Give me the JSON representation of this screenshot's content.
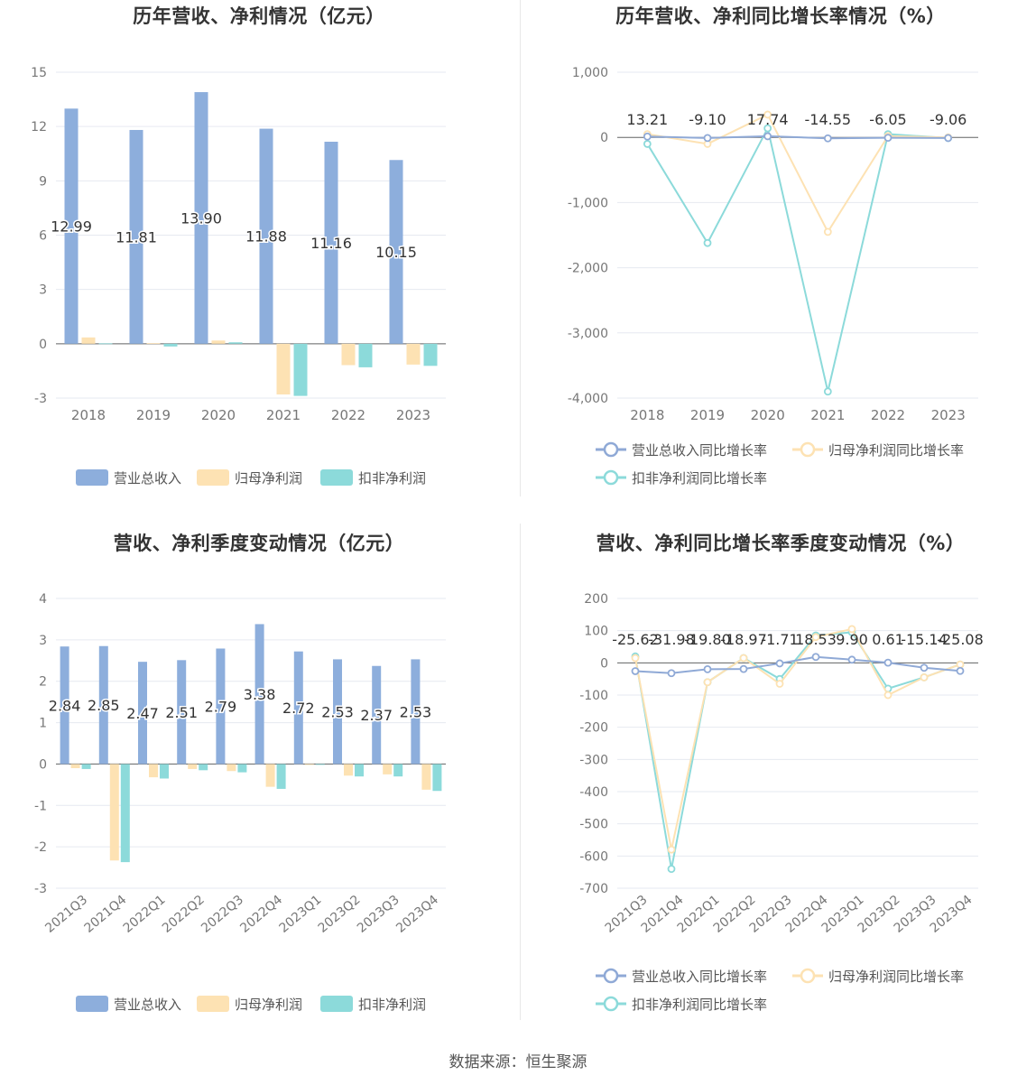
{
  "page": {
    "source_label": "数据来源：",
    "source_value": "恒生聚源"
  },
  "colors": {
    "revenue": "#8daedc",
    "parent_net": "#fde2b3",
    "deducted_net": "#8cdada",
    "revenue_line": "#8fa9d6",
    "grid": "#e6e9f0",
    "axis": "#666666"
  },
  "legend_labels": [
    "营业总收入",
    "归母净利润",
    "扣非净利润"
  ],
  "legend_growth_labels": [
    "营业总收入同比增长率",
    "归母净利润同比增长率",
    "扣非净利润同比增长率"
  ],
  "chart_data": [
    {
      "type": "bar",
      "title": "历年营收、净利情况（亿元）",
      "categories": [
        "2018",
        "2019",
        "2020",
        "2021",
        "2022",
        "2023"
      ],
      "series": [
        {
          "name": "营业总收入",
          "values": [
            12.99,
            11.81,
            13.9,
            11.88,
            11.16,
            10.15
          ]
        },
        {
          "name": "归母净利润",
          "values": [
            0.35,
            0.03,
            0.18,
            -2.8,
            -1.18,
            -1.15
          ]
        },
        {
          "name": "扣非净利润",
          "values": [
            0.02,
            -0.15,
            0.08,
            -2.88,
            -1.3,
            -1.22
          ]
        }
      ],
      "data_labels": [
        "12.99",
        "11.81",
        "13.90",
        "11.88",
        "11.16",
        "10.15"
      ],
      "ylim": [
        -3,
        15
      ],
      "yticks": [
        -3,
        0,
        3,
        6,
        9,
        12,
        15
      ],
      "ytick_labels": [
        "-3",
        "0",
        "3",
        "6",
        "9",
        "12",
        "15"
      ],
      "grid": true,
      "legend_position": "bottom"
    },
    {
      "type": "line",
      "title": "历年营收、净利同比增长率情况（%）",
      "categories": [
        "2018",
        "2019",
        "2020",
        "2021",
        "2022",
        "2023"
      ],
      "series": [
        {
          "name": "营业总收入同比增长率",
          "values": [
            13.21,
            -9.1,
            17.74,
            -14.55,
            -6.05,
            -9.06
          ]
        },
        {
          "name": "归母净利润同比增长率",
          "values": [
            50,
            -100,
            350,
            -1450,
            20,
            0
          ]
        },
        {
          "name": "扣非净利润同比增长率",
          "values": [
            -100,
            -1620,
            140,
            -3900,
            50,
            -10
          ]
        }
      ],
      "data_labels": [
        "13.21",
        "-9.10",
        "17.74",
        "-14.55",
        "-6.05",
        "-9.06"
      ],
      "ylim": [
        -4000,
        1000
      ],
      "yticks": [
        -4000,
        -3000,
        -2000,
        -1000,
        0,
        1000
      ],
      "ytick_labels": [
        "-4,000",
        "-3,000",
        "-2,000",
        "-1,000",
        "0",
        "1,000"
      ],
      "grid": true,
      "legend_position": "bottom"
    },
    {
      "type": "bar",
      "title": "营收、净利季度变动情况（亿元）",
      "categories": [
        "2021Q3",
        "2021Q4",
        "2022Q1",
        "2022Q2",
        "2022Q3",
        "2022Q4",
        "2023Q1",
        "2023Q2",
        "2023Q3",
        "2023Q4"
      ],
      "series": [
        {
          "name": "营业总收入",
          "values": [
            2.84,
            2.85,
            2.47,
            2.51,
            2.79,
            3.38,
            2.72,
            2.53,
            2.37,
            2.53
          ]
        },
        {
          "name": "归母净利润",
          "values": [
            -0.1,
            -2.33,
            -0.32,
            -0.12,
            -0.17,
            -0.55,
            -0.02,
            -0.28,
            -0.25,
            -0.62
          ]
        },
        {
          "name": "扣非净利润",
          "values": [
            -0.12,
            -2.37,
            -0.35,
            -0.15,
            -0.2,
            -0.6,
            -0.02,
            -0.3,
            -0.3,
            -0.65
          ]
        }
      ],
      "data_labels": [
        "2.84",
        "2.85",
        "2.47",
        "2.51",
        "2.79",
        "3.38",
        "2.72",
        "2.53",
        "2.37",
        "2.53"
      ],
      "ylim": [
        -3,
        4
      ],
      "yticks": [
        -3,
        -2,
        -1,
        0,
        1,
        2,
        3,
        4
      ],
      "ytick_labels": [
        "-3",
        "-2",
        "-1",
        "0",
        "1",
        "2",
        "3",
        "4"
      ],
      "grid": true,
      "legend_position": "bottom"
    },
    {
      "type": "line",
      "title": "营收、净利同比增长率季度变动情况（%）",
      "categories": [
        "2021Q3",
        "2021Q4",
        "2022Q1",
        "2022Q2",
        "2022Q3",
        "2022Q4",
        "2023Q1",
        "2023Q2",
        "2023Q3",
        "2023Q4"
      ],
      "series": [
        {
          "name": "营业总收入同比增长率",
          "values": [
            -25.62,
            -31.98,
            -19.8,
            -18.97,
            -1.71,
            18.53,
            9.9,
            0.61,
            -15.14,
            -25.08
          ]
        },
        {
          "name": "归母净利润同比增长率",
          "values": [
            15,
            -580,
            -60,
            15,
            -65,
            80,
            105,
            -100,
            -45,
            -5
          ]
        },
        {
          "name": "扣非净利润同比增长率",
          "values": [
            20,
            -640,
            -60,
            15,
            -50,
            85,
            95,
            -80,
            -45,
            -5
          ]
        }
      ],
      "data_labels": [
        "-25.62",
        "-31.98",
        "-19.80",
        "-18.97",
        "-1.71",
        "18.53",
        "9.90",
        "0.61",
        "-15.14",
        "-25.08"
      ],
      "ylim": [
        -700,
        200
      ],
      "yticks": [
        -700,
        -600,
        -500,
        -400,
        -300,
        -200,
        -100,
        0,
        100,
        200
      ],
      "ytick_labels": [
        "-700",
        "-600",
        "-500",
        "-400",
        "-300",
        "-200",
        "-100",
        "0",
        "100",
        "200"
      ],
      "grid": true,
      "legend_position": "bottom"
    }
  ]
}
